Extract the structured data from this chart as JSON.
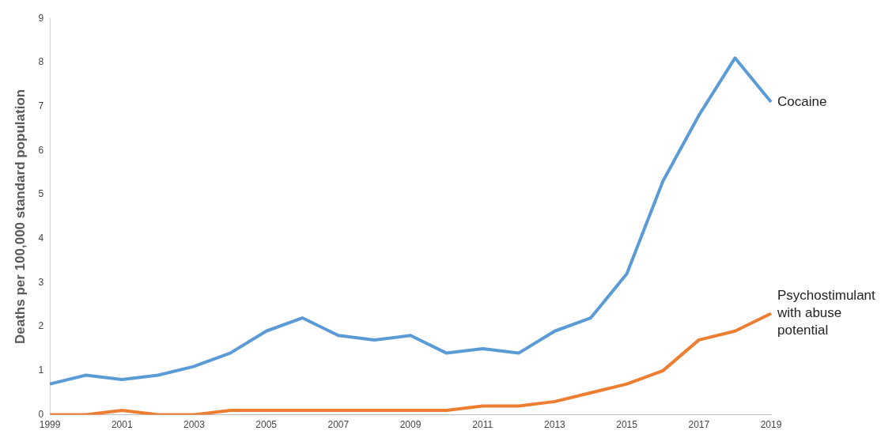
{
  "chart_data": {
    "type": "line",
    "ylabel": "Deaths per 100,000 standard population",
    "categories": [
      "1999",
      null,
      "2001",
      null,
      "2003",
      null,
      "2005",
      null,
      "2007",
      null,
      "2009",
      null,
      "2011",
      null,
      "2013",
      null,
      "2015",
      null,
      "2017",
      null,
      "2019"
    ],
    "series": [
      {
        "name": "Cocaine",
        "color": "#5b9bd5",
        "values": [
          0.7,
          0.9,
          0.8,
          0.9,
          1.1,
          1.4,
          1.9,
          2.2,
          1.8,
          1.7,
          1.8,
          1.4,
          1.5,
          1.4,
          1.9,
          2.2,
          3.2,
          5.3,
          6.8,
          8.1,
          7.1
        ]
      },
      {
        "name": "Psychostimulant with abuse potential",
        "color": "#ed7d31",
        "values": [
          0,
          0,
          0.1,
          0,
          0,
          0.1,
          0.1,
          0.1,
          0.1,
          0.1,
          0.1,
          0.1,
          0.2,
          0.2,
          0.3,
          0.5,
          0.7,
          1.0,
          1.7,
          1.9,
          2.3
        ]
      }
    ],
    "ylim": [
      0,
      9
    ],
    "yticks": [
      0,
      1,
      2,
      3,
      4,
      5,
      6,
      7,
      8,
      9
    ],
    "grid": false,
    "legend": false,
    "marker": "none",
    "line_style": "solid"
  }
}
